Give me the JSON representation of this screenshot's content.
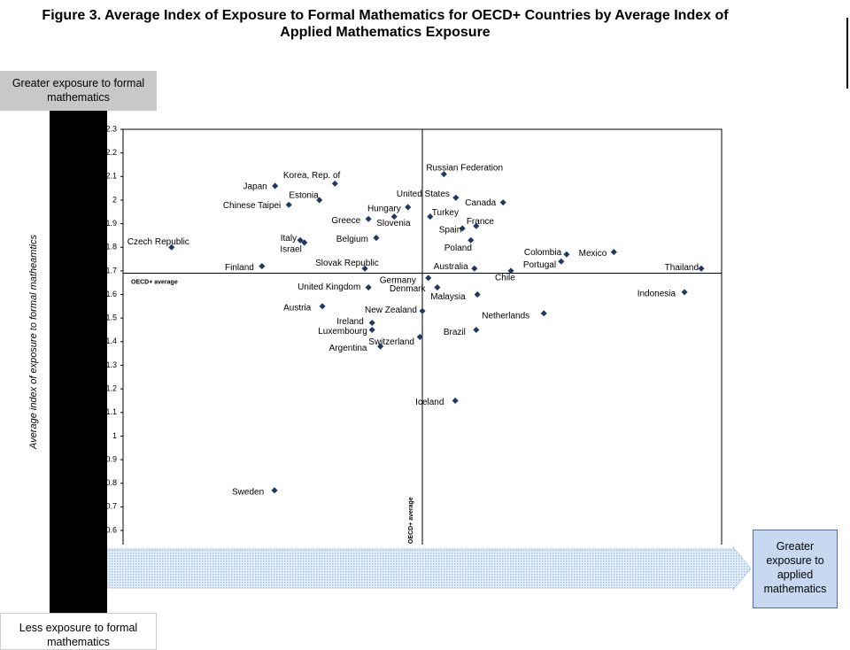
{
  "chart_data": {
    "type": "scatter",
    "title": "Figure 3.  Average Index of Exposure to Formal Mathematics for OECD+ Countries by Average Index of Applied Mathematics Exposure",
    "y_label": "Average index of exposure to formal matheamtics",
    "top_box": "Greater exposure to formal mathematics",
    "bottom_box": "Less exposure to formal mathematics",
    "right_box": "Greater exposure to applied mathematics",
    "reference_label": "OECD+ average",
    "reference_x": 50.0,
    "reference_y": 1.69,
    "color": "#1f3864",
    "xlim": [
      0,
      100
    ],
    "ylim": [
      0.54,
      2.3
    ],
    "yticks": [
      2.3,
      2.2,
      2.1,
      2.0,
      1.9,
      1.8,
      1.7,
      1.6,
      1.5,
      1.4,
      1.3,
      1.2,
      1.1,
      1.0,
      0.9,
      0.8,
      0.7,
      0.6
    ],
    "labels": [
      "Korea, Rep. of",
      "Japan",
      "Estonia",
      "Chinese Taipei",
      "Russian Federation",
      "United States",
      "Canada",
      "Hungary",
      "Turkey",
      "Slovenia",
      "Greece",
      "France",
      "Spain",
      "Czech Republic",
      "Italy",
      "Israel",
      "Belgium",
      "Poland",
      "Mexico",
      "Colombia",
      "Portugal",
      "Finland",
      "Slovak Republic",
      "Australia",
      "Chile",
      "Thailand",
      "Germany",
      "United Kingdom",
      "Denmark",
      "Malaysia",
      "Indonesia",
      "Austria",
      "New Zealand",
      "Netherlands",
      "Ireland",
      "Luxembourg",
      "Brazil",
      "Switzerland",
      "Argentina",
      "Iceland",
      "Sweden"
    ],
    "x": [
      35.4,
      25.4,
      32.8,
      27.7,
      53.6,
      55.6,
      63.5,
      47.6,
      51.3,
      45.3,
      41.0,
      59.0,
      56.7,
      8.1,
      29.6,
      30.3,
      42.3,
      58.1,
      82.0,
      74.1,
      73.2,
      23.2,
      40.4,
      58.7,
      64.8,
      96.6,
      51.0,
      41.0,
      52.5,
      59.2,
      93.8,
      33.3,
      50.0,
      70.3,
      41.6,
      41.6,
      59.0,
      49.6,
      43.0,
      55.5,
      25.3
    ],
    "values": [
      2.07,
      2.06,
      2.0,
      1.98,
      2.11,
      2.01,
      1.99,
      1.97,
      1.93,
      1.93,
      1.92,
      1.89,
      1.88,
      1.8,
      1.83,
      1.82,
      1.84,
      1.83,
      1.78,
      1.77,
      1.74,
      1.72,
      1.71,
      1.71,
      1.7,
      1.71,
      1.67,
      1.63,
      1.63,
      1.6,
      1.61,
      1.55,
      1.53,
      1.52,
      1.48,
      1.45,
      1.45,
      1.42,
      1.38,
      1.15,
      0.77
    ]
  }
}
